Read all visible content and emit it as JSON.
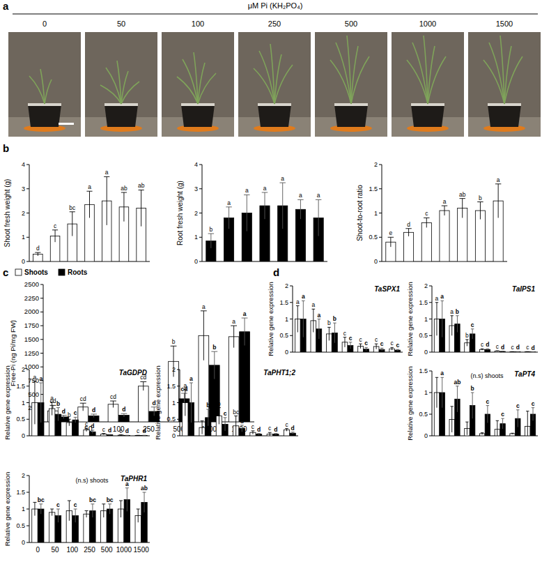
{
  "panel_labels": [
    "a",
    "b",
    "c",
    "d"
  ],
  "photo_panel": {
    "title": "μM Pi (KH₂PO₄)",
    "labels": [
      "0",
      "50",
      "100",
      "250",
      "500",
      "1000",
      "1500"
    ]
  },
  "chart_data": [
    {
      "type": "bar",
      "y_label": "Shoot fresh weight (g)",
      "categories": [
        "0",
        "50",
        "100",
        "250",
        "500",
        "1000",
        "1500"
      ],
      "ylim": [
        0,
        4
      ],
      "yticks": [
        0,
        1,
        2,
        3,
        4
      ],
      "tick_labels": "y",
      "series": [
        {
          "color": "#ffffff",
          "values": [
            0.3,
            1.05,
            1.55,
            2.35,
            2.5,
            2.25,
            2.2
          ],
          "errors": [
            0.07,
            0.25,
            0.5,
            0.55,
            1.0,
            0.6,
            0.75
          ],
          "significance": [
            "d",
            "c",
            "bc",
            "a",
            "a",
            "ab",
            "ab"
          ]
        }
      ]
    },
    {
      "type": "bar",
      "y_label": "Root fresh weight (g)",
      "categories": [
        "0",
        "50",
        "100",
        "250",
        "500",
        "1000",
        "1500"
      ],
      "ylim": [
        0,
        4
      ],
      "yticks": [
        0,
        1,
        2,
        3,
        4
      ],
      "tick_labels": "y",
      "series": [
        {
          "color": "#000000",
          "values": [
            0.85,
            1.8,
            2.0,
            2.3,
            2.3,
            2.15,
            1.8
          ],
          "errors": [
            0.3,
            0.45,
            0.75,
            0.55,
            0.95,
            0.4,
            0.75
          ],
          "significance": [
            "b",
            "a",
            "a",
            "a",
            "a",
            "a",
            "a"
          ]
        }
      ]
    },
    {
      "type": "bar",
      "y_label": "Shoot-to-root ratio",
      "categories": [
        "0",
        "50",
        "100",
        "250",
        "500",
        "1000",
        "1500"
      ],
      "ylim": [
        0,
        2
      ],
      "yticks": [
        0,
        0.5,
        1,
        1.5,
        2
      ],
      "tick_labels": "y",
      "series": [
        {
          "color": "#ffffff",
          "values": [
            0.4,
            0.6,
            0.8,
            1.05,
            1.1,
            1.05,
            1.25
          ],
          "errors": [
            0.1,
            0.08,
            0.1,
            0.1,
            0.2,
            0.18,
            0.35
          ],
          "significance": [
            "e",
            "d",
            "c",
            "a",
            "ab",
            "b",
            "a"
          ]
        }
      ]
    },
    {
      "type": "bar",
      "y_label": "Free-Pi (ng Pi/mg FW)",
      "categories": [
        "0",
        "50",
        "100",
        "250",
        "500",
        "1000",
        "1500"
      ],
      "ylim": [
        0,
        2500
      ],
      "yticks": [
        0,
        250,
        500,
        750,
        1000,
        1250,
        1500,
        1750,
        2000,
        2250,
        2500
      ],
      "legend": "top-left",
      "series": [
        {
          "name": "Shoots",
          "color": "#ffffff",
          "values": [
            200,
            270,
            320,
            650,
            1100,
            1570,
            1550
          ],
          "errors": [
            100,
            70,
            60,
            80,
            280,
            450,
            200
          ],
          "significance": [
            "cd",
            "cd",
            "cd",
            "cd",
            "b",
            "a",
            "a"
          ]
        },
        {
          "name": "Roots",
          "color": "#000000",
          "values": [
            90,
            110,
            120,
            190,
            420,
            1030,
            1640
          ],
          "errors": [
            30,
            30,
            30,
            80,
            100,
            250,
            250
          ],
          "significance": [
            "d",
            "d",
            "d",
            "d",
            "cd",
            "b",
            "a"
          ]
        }
      ]
    },
    {
      "type": "bar",
      "title": "TaSPX1",
      "y_label": "Relative gene expression",
      "categories": [
        "0",
        "50",
        "100",
        "250",
        "500",
        "1000",
        "1500"
      ],
      "ylim": [
        0,
        2
      ],
      "yticks": [
        0,
        0.5,
        1,
        1.5,
        2
      ],
      "tick_labels": "y",
      "series": [
        {
          "color": "#ffffff",
          "values": [
            1,
            0.95,
            0.55,
            0.3,
            0.18,
            0.17,
            0.1
          ],
          "errors": [
            0.4,
            0.35,
            0.2,
            0.15,
            0.07,
            0.08,
            0.04
          ],
          "significance": [
            "a",
            "a",
            "b",
            "c",
            "c",
            "c",
            "c"
          ]
        },
        {
          "color": "#000000",
          "values": [
            1,
            0.7,
            0.58,
            0.2,
            0.09,
            0.08,
            0.06
          ],
          "errors": [
            0.55,
            0.3,
            0.3,
            0.1,
            0.05,
            0.04,
            0.02
          ],
          "significance": [
            "a",
            "a",
            "b",
            "c",
            "c",
            "c",
            "c"
          ]
        }
      ]
    },
    {
      "type": "bar",
      "title": "TaIPS1",
      "y_label": "Relative gene expression",
      "categories": [
        "0",
        "50",
        "100",
        "250",
        "500",
        "1000",
        "1500"
      ],
      "ylim": [
        0,
        2
      ],
      "yticks": [
        0,
        0.5,
        1,
        1.5,
        2
      ],
      "tick_labels": "y",
      "series": [
        {
          "color": "#ffffff",
          "values": [
            1,
            0.8,
            0.28,
            0.08,
            0.03,
            0.01,
            0.01
          ],
          "errors": [
            0.5,
            0.3,
            0.1,
            0.02,
            0.01,
            0.005,
            0.005
          ],
          "significance": [
            "a",
            "a",
            "b",
            "c",
            "c",
            "c",
            "c"
          ]
        },
        {
          "color": "#000000",
          "values": [
            1,
            0.85,
            0.55,
            0.08,
            0.02,
            0.01,
            0.005
          ],
          "errors": [
            0.55,
            0.25,
            0.15,
            0.02,
            0.01,
            0.005,
            0.003
          ],
          "significance": [
            "a",
            "b",
            "c",
            "d",
            "d",
            "d",
            "d"
          ]
        }
      ]
    },
    {
      "type": "bar",
      "title": "TaGDPD",
      "y_label": "Relative gene expression",
      "categories": [
        "0",
        "50",
        "100",
        "250",
        "500",
        "1000",
        "1500"
      ],
      "ylim": [
        0,
        2
      ],
      "yticks": [
        0,
        0.5,
        1,
        1.5,
        2
      ],
      "tick_labels": "y",
      "series": [
        {
          "color": "#ffffff",
          "values": [
            1,
            0.82,
            0.4,
            0.18,
            0.05,
            0.02,
            0.01
          ],
          "errors": [
            0.65,
            0.2,
            0.1,
            0.05,
            0.02,
            0.01,
            0.005
          ],
          "significance": [
            "a",
            "a",
            "b",
            "c",
            "c",
            "c",
            "c"
          ]
        },
        {
          "color": "#000000",
          "values": [
            1,
            0.65,
            0.48,
            0.12,
            0.03,
            0.01,
            0.01
          ],
          "errors": [
            0.6,
            0.2,
            0.08,
            0.05,
            0.01,
            0.005,
            0.005
          ],
          "significance": [
            "a",
            "b",
            "c",
            "d",
            "d",
            "d",
            "d"
          ]
        }
      ]
    },
    {
      "type": "bar",
      "title": "TaPHT1;2",
      "y_label": "Relative gene expression",
      "categories": [
        "0",
        "50",
        "100",
        "250",
        "500",
        "1000",
        "1500"
      ],
      "ylim": [
        0,
        2
      ],
      "yticks": [
        0,
        0.5,
        1,
        1.5,
        2
      ],
      "tick_labels": "y",
      "series": [
        {
          "color": "#ffffff",
          "values": [
            1,
            0.25,
            0.6,
            0.3,
            0.1,
            0.05,
            0.18
          ],
          "errors": [
            0.4,
            0.2,
            0.25,
            0.3,
            0.05,
            0.05,
            0.04
          ],
          "significance": [
            "a",
            null,
            "b",
            "bc",
            "c",
            "c",
            "c"
          ]
        },
        {
          "color": "#000000",
          "values": [
            1,
            0.55,
            0.35,
            0.22,
            0.05,
            0.05,
            0.08
          ],
          "errors": [
            0.6,
            0.25,
            0.2,
            0.1,
            0.02,
            0.02,
            0.03
          ],
          "significance": [
            "a",
            "b",
            "c",
            "d",
            "d",
            "d",
            "d"
          ]
        }
      ]
    },
    {
      "type": "bar",
      "title": "TaPT4",
      "annotation": "(n.s) shoots",
      "y_label": "Relative gene expression",
      "categories": [
        "0",
        "50",
        "100",
        "250",
        "500",
        "1000",
        "1500"
      ],
      "ylim": [
        0,
        1.5
      ],
      "yticks": [
        0,
        0.5,
        1,
        1.5
      ],
      "tick_labels": "y",
      "series": [
        {
          "color": "#ffffff",
          "values": [
            1,
            0.38,
            0.17,
            0.05,
            0.15,
            0.05,
            0.22
          ],
          "errors": [
            0.35,
            0.3,
            0.15,
            0.02,
            0.2,
            0.01,
            0.35
          ]
        },
        {
          "color": "#000000",
          "values": [
            1,
            0.85,
            0.7,
            0.5,
            0.28,
            0.4,
            0.5
          ],
          "errors": [
            0.35,
            0.3,
            0.3,
            0.2,
            0.12,
            0.2,
            0.15
          ],
          "significance": [
            "a",
            "ab",
            "b",
            "c",
            "c",
            "c",
            "c"
          ]
        }
      ]
    },
    {
      "type": "bar",
      "title": "TaPHR1",
      "annotation": "(n.s) shoots",
      "y_label": "Relative gene expression",
      "categories": [
        "0",
        "50",
        "100",
        "250",
        "500",
        "1000",
        "1500"
      ],
      "ylim": [
        0,
        2
      ],
      "yticks": [
        0,
        0.5,
        1,
        1.5,
        2
      ],
      "series": [
        {
          "color": "#ffffff",
          "values": [
            1,
            0.9,
            0.95,
            0.85,
            0.95,
            1.0,
            0.8
          ],
          "errors": [
            0.2,
            0.1,
            0.3,
            0.1,
            0.2,
            0.25,
            0.2
          ]
        },
        {
          "color": "#000000",
          "values": [
            1,
            0.8,
            0.8,
            0.95,
            1.0,
            1.28,
            1.2
          ],
          "errors": [
            0.15,
            0.2,
            0.2,
            0.2,
            0.15,
            0.35,
            0.3
          ],
          "significance": [
            "bc",
            "c",
            "c",
            "bc",
            "bc",
            "a",
            "ab"
          ]
        }
      ]
    }
  ]
}
